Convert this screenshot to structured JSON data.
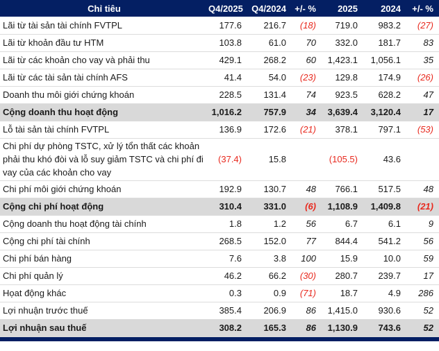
{
  "colors": {
    "header_bg": "#041f63",
    "header_text": "#ffffff",
    "total_row_bg": "#d9d9d9",
    "negative_value": "#e8291e",
    "text": "#1a1a1a",
    "row_separator": "#dcdcdc",
    "bottom_bar": "#041f63"
  },
  "table": {
    "columns": [
      "Chỉ tiêu",
      "Q4/2025",
      "Q4/2024",
      "+/- %",
      "2025",
      "2024",
      "+/- %"
    ],
    "rows": [
      {
        "label": "Lãi từ tài sản tài chính FVTPL",
        "values": [
          "177.6",
          "216.7",
          "(18)",
          "719.0",
          "983.2",
          "(27)"
        ],
        "total": false,
        "multiline": false
      },
      {
        "label": "Lãi từ khoản đầu tư HTM",
        "values": [
          "103.8",
          "61.0",
          "70",
          "332.0",
          "181.7",
          "83"
        ],
        "total": false,
        "multiline": false
      },
      {
        "label": "Lãi từ các khoản cho vay và phải thu",
        "values": [
          "429.1",
          "268.2",
          "60",
          "1,423.1",
          "1,056.1",
          "35"
        ],
        "total": false,
        "multiline": false
      },
      {
        "label": "Lãi từ các tài sản tài chính AFS",
        "values": [
          "41.4",
          "54.0",
          "(23)",
          "129.8",
          "174.9",
          "(26)"
        ],
        "total": false,
        "multiline": false
      },
      {
        "label": "Doanh thu môi giới chứng khoán",
        "values": [
          "228.5",
          "131.4",
          "74",
          "923.5",
          "628.2",
          "47"
        ],
        "total": false,
        "multiline": false
      },
      {
        "label": "Cộng doanh thu hoạt động",
        "values": [
          "1,016.2",
          "757.9",
          "34",
          "3,639.4",
          "3,120.4",
          "17"
        ],
        "total": true,
        "multiline": false
      },
      {
        "label": "Lỗ tài sản tài chính FVTPL",
        "values": [
          "136.9",
          "172.6",
          "(21)",
          "378.1",
          "797.1",
          "(53)"
        ],
        "total": false,
        "multiline": false
      },
      {
        "label": "Chi phí dự phòng TSTC, xử lý tổn thất các khoản phải thu khó đòi và lỗ suy giảm TSTC và chi phí đi vay của các khoản cho vay",
        "values": [
          "(37.4)",
          "15.8",
          "",
          "(105.5)",
          "43.6",
          ""
        ],
        "total": false,
        "multiline": true
      },
      {
        "label": "Chi phí môi giới chứng khoán",
        "values": [
          "192.9",
          "130.7",
          "48",
          "766.1",
          "517.5",
          "48"
        ],
        "total": false,
        "multiline": false
      },
      {
        "label": "Cộng chi phí hoạt động",
        "values": [
          "310.4",
          "331.0",
          "(6)",
          "1,108.9",
          "1,409.8",
          "(21)"
        ],
        "total": true,
        "multiline": false
      },
      {
        "label": "Cộng doanh thu hoạt động tài chính",
        "values": [
          "1.8",
          "1.2",
          "56",
          "6.7",
          "6.1",
          "9"
        ],
        "total": false,
        "multiline": false
      },
      {
        "label": "Cộng chi phí tài chính",
        "values": [
          "268.5",
          "152.0",
          "77",
          "844.4",
          "541.2",
          "56"
        ],
        "total": false,
        "multiline": false
      },
      {
        "label": "Chi phí bán hàng",
        "values": [
          "7.6",
          "3.8",
          "100",
          "15.9",
          "10.0",
          "59"
        ],
        "total": false,
        "multiline": false
      },
      {
        "label": "Chi phí quản lý",
        "values": [
          "46.2",
          "66.2",
          "(30)",
          "280.7",
          "239.7",
          "17"
        ],
        "total": false,
        "multiline": false
      },
      {
        "label": "Họat động khác",
        "values": [
          "0.3",
          "0.9",
          "(71)",
          "18.7",
          "4.9",
          "286"
        ],
        "total": false,
        "multiline": false
      },
      {
        "label": "Lợi nhuận trước thuế",
        "values": [
          "385.4",
          "206.9",
          "86",
          "1,415.0",
          "930.6",
          "52"
        ],
        "total": false,
        "multiline": false
      },
      {
        "label": "Lợi nhuận sau thuế",
        "values": [
          "308.2",
          "165.3",
          "86",
          "1,130.9",
          "743.6",
          "52"
        ],
        "total": true,
        "multiline": false
      }
    ]
  }
}
